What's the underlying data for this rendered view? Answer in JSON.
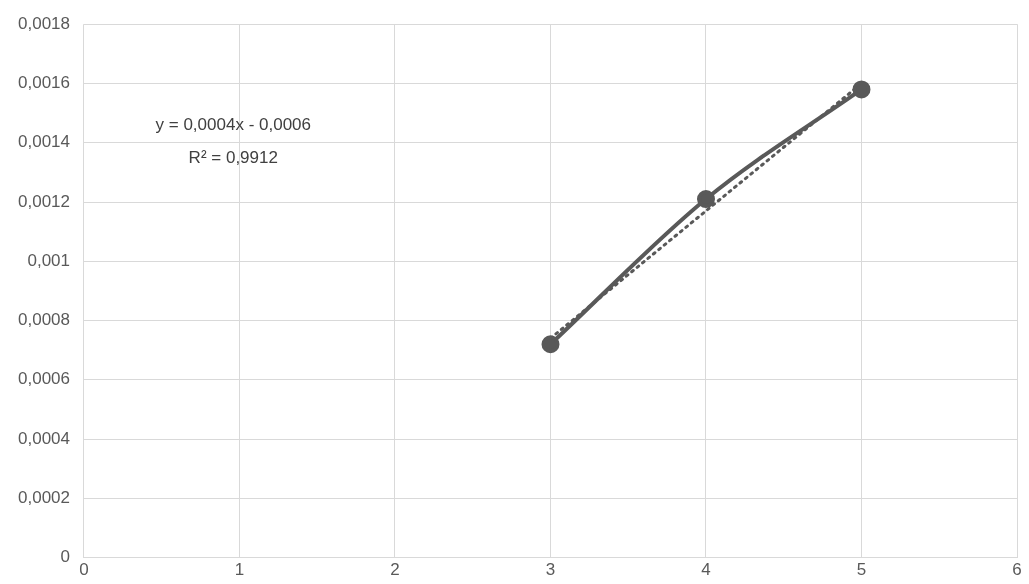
{
  "chart_data": {
    "type": "line",
    "xlim": [
      0,
      6
    ],
    "xticks": [
      0,
      1,
      2,
      3,
      4,
      5,
      6
    ],
    "ylim": [
      0,
      0.0018
    ],
    "yticks": [
      {
        "value": 0,
        "label": "0"
      },
      {
        "value": 0.0002,
        "label": "0,0002"
      },
      {
        "value": 0.0004,
        "label": "0,0004"
      },
      {
        "value": 0.0006,
        "label": "0,0006"
      },
      {
        "value": 0.0008,
        "label": "0,0008"
      },
      {
        "value": 0.001,
        "label": "0,001"
      },
      {
        "value": 0.0012,
        "label": "0,0012"
      },
      {
        "value": 0.0014,
        "label": "0,0014"
      },
      {
        "value": 0.0016,
        "label": "0,0016"
      },
      {
        "value": 0.0018,
        "label": "0,0018"
      }
    ],
    "series": [
      {
        "color": "#595959",
        "x": [
          3,
          4,
          5
        ],
        "values": [
          0.00072,
          0.00121,
          0.00158
        ],
        "marker": "circle",
        "line_style": "solid"
      },
      {
        "color": "#595959",
        "x": [
          3,
          5
        ],
        "values": [
          0.00074,
          0.0016
        ],
        "marker": "none",
        "line_style": "dotted"
      }
    ],
    "annotations": [
      "y = 0,0004x - 0,0006",
      "R² = 0,9912"
    ],
    "grid": true,
    "legend": false
  }
}
